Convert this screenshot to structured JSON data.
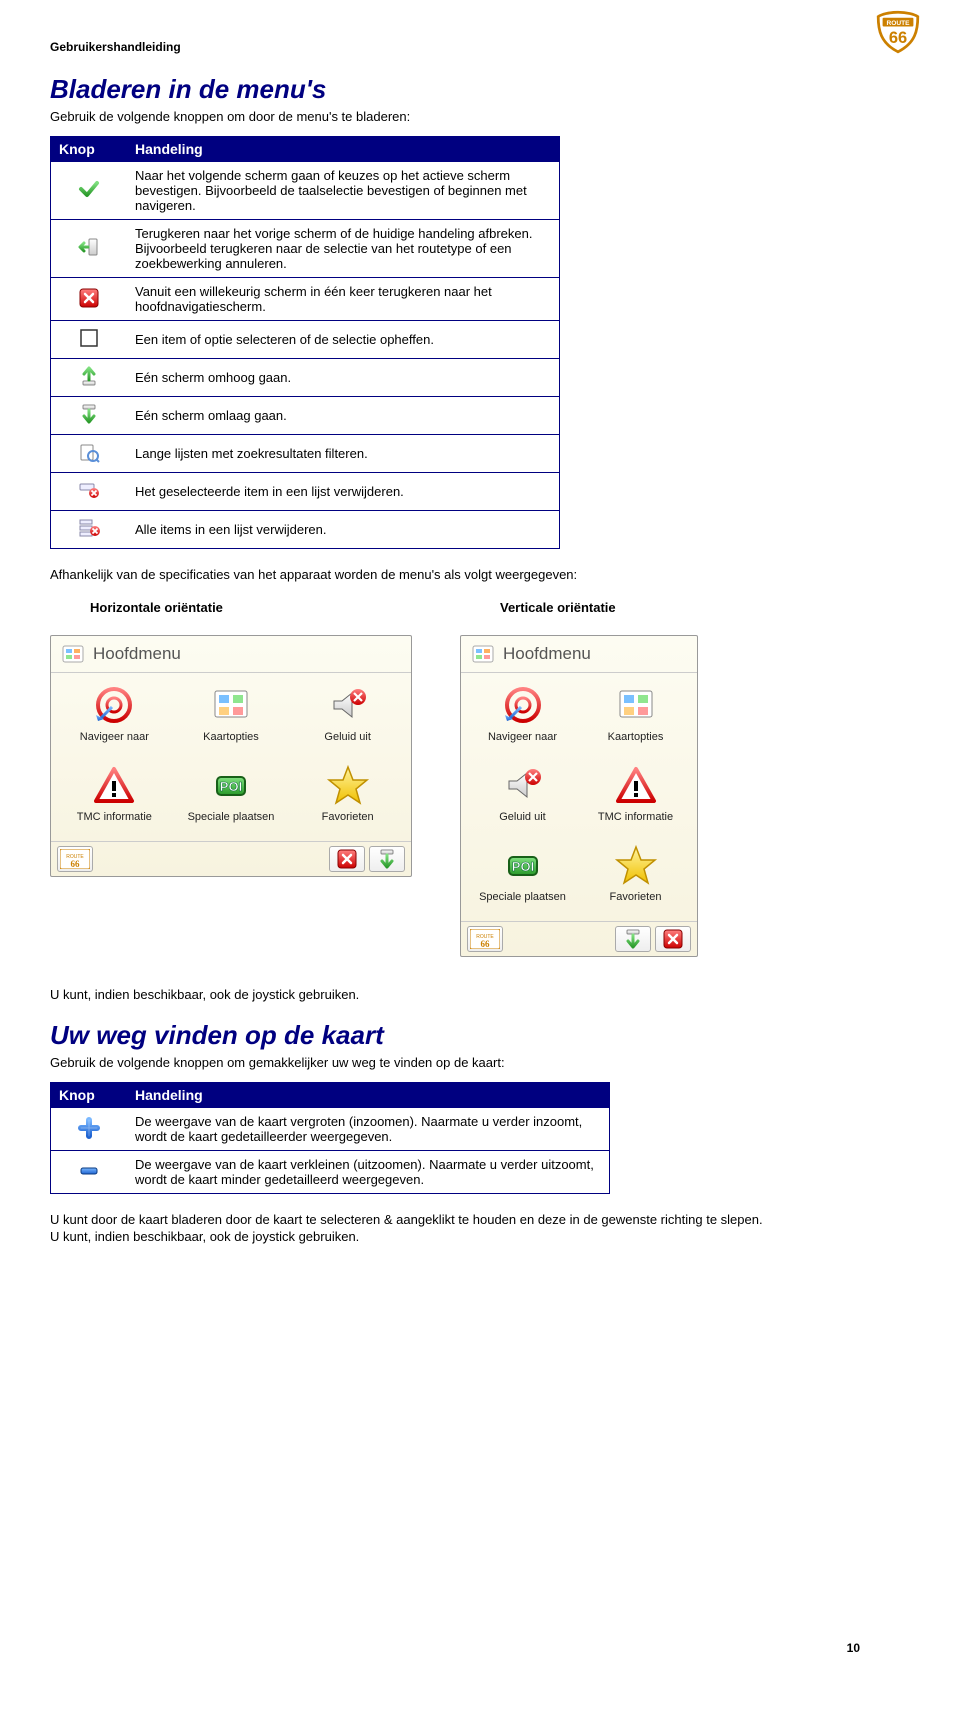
{
  "doc": {
    "header": "Gebruikershandleiding",
    "page_number": "10"
  },
  "section1": {
    "title": "Bladeren in de menu's",
    "intro": "Gebruik de volgende knoppen om door de menu's te bladeren:",
    "table": {
      "col_knop": "Knop",
      "col_handeling": "Handeling",
      "rows": [
        {
          "icon": "check",
          "text": "Naar het volgende scherm gaan of keuzes op het actieve scherm bevestigen. Bijvoorbeeld de taalselectie bevestigen of beginnen met navigeren."
        },
        {
          "icon": "back",
          "text": "Terugkeren naar het vorige scherm of de huidige handeling afbreken. Bijvoorbeeld terugkeren naar de selectie van het routetype of een zoekbewerking annuleren."
        },
        {
          "icon": "close-red",
          "text": "Vanuit een willekeurig scherm in één keer terugkeren naar het hoofdnavigatiescherm."
        },
        {
          "icon": "checkbox",
          "text": "Een item of optie selecteren of de selectie opheffen."
        },
        {
          "icon": "up",
          "text": "Eén scherm omhoog gaan."
        },
        {
          "icon": "down",
          "text": "Eén scherm omlaag gaan."
        },
        {
          "icon": "filter",
          "text": "Lange lijsten met zoekresultaten filteren."
        },
        {
          "icon": "delete-item",
          "text": "Het geselecteerde item in een lijst verwijderen."
        },
        {
          "icon": "delete-all",
          "text": "Alle items in een lijst verwijderen."
        }
      ]
    },
    "after_table": "Afhankelijk van de specificaties van het apparaat worden de menu's als volgt weergegeven:",
    "orient_h_label": "Horizontale oriëntatie",
    "orient_v_label": "Verticale oriëntatie"
  },
  "menu": {
    "title": "Hoofdmenu",
    "items": {
      "nav": "Navigeer naar",
      "kaart": "Kaartopties",
      "geluid": "Geluid uit",
      "tmc": "TMC informatie",
      "poi": "Speciale plaatsen",
      "fav": "Favorieten"
    }
  },
  "section2": {
    "before": "U kunt, indien beschikbaar, ook de joystick gebruiken.",
    "title": "Uw weg vinden op de kaart",
    "intro": "Gebruik de volgende knoppen om gemakkelijker uw weg te vinden op de kaart:",
    "table": {
      "col_knop": "Knop",
      "col_handeling": "Handeling",
      "rows": [
        {
          "icon": "plus",
          "text": "De weergave van de kaart vergroten (inzoomen). Naarmate u verder inzoomt, wordt de kaart gedetailleerder weergegeven."
        },
        {
          "icon": "minus",
          "text": "De weergave van de kaart verkleinen (uitzoomen). Naarmate u verder uitzoomt, wordt de kaart minder gedetailleerd weergegeven."
        }
      ]
    },
    "after1": "U kunt door de kaart bladeren door de kaart te selecteren & aangeklikt te houden en deze in de gewenste richting te slepen.",
    "after2": "U kunt, indien beschikbaar, ook de joystick gebruiken."
  },
  "colors": {
    "navy": "#000080",
    "green": "#3cb043",
    "red": "#e02020",
    "orange": "#f08000",
    "blue": "#1e62d0",
    "yellow": "#ffcc00",
    "cream_top": "#fdfcf2",
    "cream_bot": "#f7f3df"
  }
}
